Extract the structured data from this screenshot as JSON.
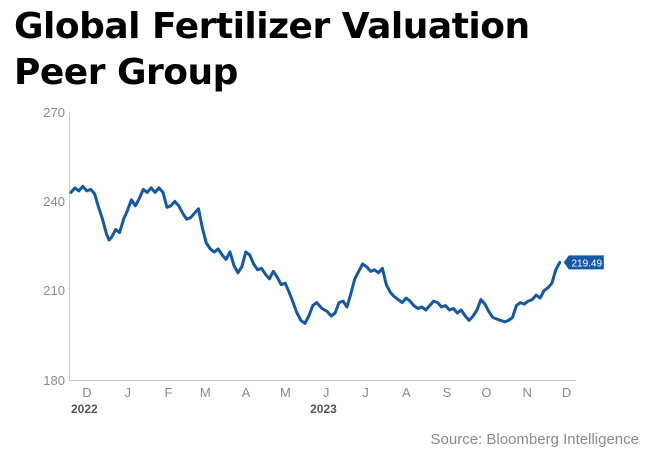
{
  "title": {
    "line1": "Global Fertilizer Valuation",
    "line2": "Peer Group"
  },
  "source": "Source: Bloomberg Intelligence",
  "colors": {
    "series": "#1558a6",
    "axis": "#c8c8c8",
    "tick_text": "#8a8a8a",
    "background": "#ffffff"
  },
  "chart_data": {
    "type": "line",
    "title": "Global Fertilizer Valuation Peer Group",
    "xlabel": "",
    "ylabel": "",
    "ylim": [
      180,
      270
    ],
    "yticks": [
      "270",
      "240",
      "210",
      "180"
    ],
    "x_domain": [
      "2022-12-01",
      "2023-12-31"
    ],
    "xticks": [
      {
        "label": "D",
        "date": "2022-12-01"
      },
      {
        "label": "J",
        "date": "2023-01-01"
      },
      {
        "label": "F",
        "date": "2023-02-01"
      },
      {
        "label": "M",
        "date": "2023-03-01"
      },
      {
        "label": "A",
        "date": "2023-04-01"
      },
      {
        "label": "M",
        "date": "2023-05-01"
      },
      {
        "label": "J",
        "date": "2023-06-01"
      },
      {
        "label": "J",
        "date": "2023-07-01"
      },
      {
        "label": "A",
        "date": "2023-08-01"
      },
      {
        "label": "S",
        "date": "2023-09-01"
      },
      {
        "label": "O",
        "date": "2023-10-01"
      },
      {
        "label": "N",
        "date": "2023-11-01"
      },
      {
        "label": "D",
        "date": "2023-12-01"
      }
    ],
    "year_labels": [
      {
        "label": "2022",
        "date": "2022-12-01"
      },
      {
        "label": "2023",
        "date": "2023-06-01"
      }
    ],
    "grid": false,
    "last_value_label": "219.49",
    "series": [
      {
        "values": [
          [
            "2022-12-01",
            243.0
          ],
          [
            "2022-12-04",
            244.5
          ],
          [
            "2022-12-07",
            243.5
          ],
          [
            "2022-12-10",
            245.0
          ],
          [
            "2022-12-13",
            243.5
          ],
          [
            "2022-12-16",
            244.0
          ],
          [
            "2022-12-19",
            242.5
          ],
          [
            "2022-12-22",
            238.0
          ],
          [
            "2022-12-25",
            234.0
          ],
          [
            "2022-12-28",
            229.0
          ],
          [
            "2022-12-30",
            227.0
          ],
          [
            "2023-01-01",
            228.0
          ],
          [
            "2023-01-04",
            230.5
          ],
          [
            "2023-01-07",
            229.5
          ],
          [
            "2023-01-10",
            234.0
          ],
          [
            "2023-01-13",
            237.0
          ],
          [
            "2023-01-16",
            240.5
          ],
          [
            "2023-01-19",
            238.5
          ],
          [
            "2023-01-22",
            241.0
          ],
          [
            "2023-01-25",
            244.0
          ],
          [
            "2023-01-28",
            243.0
          ],
          [
            "2023-01-31",
            244.5
          ],
          [
            "2023-02-03",
            243.0
          ],
          [
            "2023-02-06",
            244.5
          ],
          [
            "2023-02-09",
            243.0
          ],
          [
            "2023-02-12",
            238.0
          ],
          [
            "2023-02-15",
            238.5
          ],
          [
            "2023-02-18",
            240.0
          ],
          [
            "2023-02-21",
            238.5
          ],
          [
            "2023-02-24",
            236.0
          ],
          [
            "2023-02-27",
            234.0
          ],
          [
            "2023-03-02",
            234.5
          ],
          [
            "2023-03-05",
            236.0
          ],
          [
            "2023-03-08",
            237.5
          ],
          [
            "2023-03-11",
            231.0
          ],
          [
            "2023-03-14",
            226.0
          ],
          [
            "2023-03-17",
            224.0
          ],
          [
            "2023-03-20",
            223.0
          ],
          [
            "2023-03-23",
            224.0
          ],
          [
            "2023-03-26",
            222.0
          ],
          [
            "2023-03-29",
            220.5
          ],
          [
            "2023-04-01",
            223.0
          ],
          [
            "2023-04-04",
            218.5
          ],
          [
            "2023-04-07",
            216.0
          ],
          [
            "2023-04-10",
            218.0
          ],
          [
            "2023-04-13",
            223.0
          ],
          [
            "2023-04-16",
            222.0
          ],
          [
            "2023-04-19",
            219.0
          ],
          [
            "2023-04-22",
            217.0
          ],
          [
            "2023-04-25",
            217.5
          ],
          [
            "2023-04-28",
            215.5
          ],
          [
            "2023-05-01",
            214.0
          ],
          [
            "2023-05-04",
            216.5
          ],
          [
            "2023-05-07",
            214.5
          ],
          [
            "2023-05-10",
            212.0
          ],
          [
            "2023-05-13",
            212.5
          ],
          [
            "2023-05-16",
            209.5
          ],
          [
            "2023-05-19",
            206.0
          ],
          [
            "2023-05-22",
            202.5
          ],
          [
            "2023-05-25",
            200.0
          ],
          [
            "2023-05-28",
            199.0
          ],
          [
            "2023-05-31",
            201.5
          ],
          [
            "2023-06-03",
            205.0
          ],
          [
            "2023-06-06",
            206.0
          ],
          [
            "2023-06-10",
            204.0
          ],
          [
            "2023-06-14",
            203.0
          ],
          [
            "2023-06-17",
            201.5
          ],
          [
            "2023-06-20",
            202.5
          ],
          [
            "2023-06-23",
            206.0
          ],
          [
            "2023-06-26",
            206.5
          ],
          [
            "2023-06-29",
            204.5
          ],
          [
            "2023-07-02",
            209.0
          ],
          [
            "2023-07-05",
            214.0
          ],
          [
            "2023-07-08",
            216.5
          ],
          [
            "2023-07-11",
            219.0
          ],
          [
            "2023-07-14",
            218.0
          ],
          [
            "2023-07-17",
            216.5
          ],
          [
            "2023-07-20",
            217.0
          ],
          [
            "2023-07-23",
            216.0
          ],
          [
            "2023-07-26",
            217.5
          ],
          [
            "2023-07-29",
            212.0
          ],
          [
            "2023-08-01",
            209.5
          ],
          [
            "2023-08-04",
            208.0
          ],
          [
            "2023-08-07",
            207.0
          ],
          [
            "2023-08-10",
            206.0
          ],
          [
            "2023-08-13",
            207.5
          ],
          [
            "2023-08-16",
            206.5
          ],
          [
            "2023-08-19",
            205.0
          ],
          [
            "2023-08-22",
            204.0
          ],
          [
            "2023-08-25",
            204.5
          ],
          [
            "2023-08-28",
            203.5
          ],
          [
            "2023-08-31",
            205.0
          ],
          [
            "2023-09-03",
            206.5
          ],
          [
            "2023-09-06",
            206.0
          ],
          [
            "2023-09-09",
            204.5
          ],
          [
            "2023-09-12",
            205.0
          ],
          [
            "2023-09-15",
            203.5
          ],
          [
            "2023-09-18",
            204.0
          ],
          [
            "2023-09-21",
            202.5
          ],
          [
            "2023-09-24",
            203.5
          ],
          [
            "2023-09-27",
            201.5
          ],
          [
            "2023-09-30",
            200.0
          ],
          [
            "2023-10-03",
            201.5
          ],
          [
            "2023-10-06",
            203.5
          ],
          [
            "2023-10-09",
            207.0
          ],
          [
            "2023-10-12",
            205.5
          ],
          [
            "2023-10-15",
            203.0
          ],
          [
            "2023-10-18",
            201.0
          ],
          [
            "2023-10-21",
            200.5
          ],
          [
            "2023-10-24",
            200.0
          ],
          [
            "2023-10-27",
            199.5
          ],
          [
            "2023-10-30",
            200.0
          ],
          [
            "2023-11-02",
            201.0
          ],
          [
            "2023-11-05",
            205.0
          ],
          [
            "2023-11-08",
            206.0
          ],
          [
            "2023-11-11",
            205.5
          ],
          [
            "2023-11-14",
            206.5
          ],
          [
            "2023-11-17",
            207.0
          ],
          [
            "2023-11-20",
            208.5
          ],
          [
            "2023-11-23",
            207.5
          ],
          [
            "2023-11-26",
            210.0
          ],
          [
            "2023-11-29",
            211.0
          ],
          [
            "2023-12-02",
            212.5
          ],
          [
            "2023-12-05",
            217.0
          ],
          [
            "2023-12-08",
            219.49
          ]
        ]
      }
    ]
  }
}
